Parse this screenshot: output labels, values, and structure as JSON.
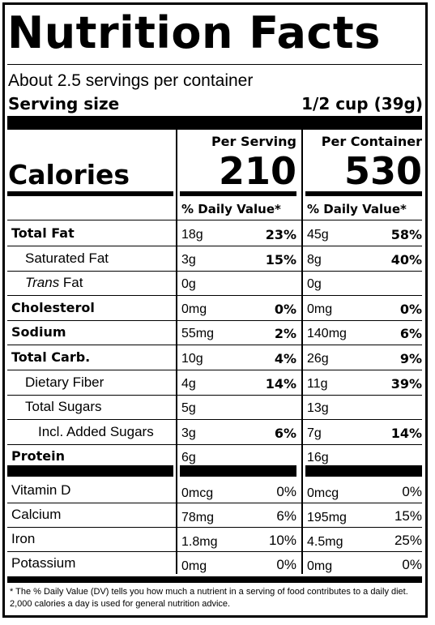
{
  "title": "Nutrition Facts",
  "servings_per_container": "About 2.5 servings per container",
  "serving_size_label": "Serving size",
  "serving_size_value": "1/2 cup (39g)",
  "columns": {
    "per_serving": "Per Serving",
    "per_container": "Per Container"
  },
  "calories": {
    "label": "Calories",
    "per_serving": "210",
    "per_container": "530"
  },
  "daily_value_header": "% Daily Value*",
  "nutrients": [
    {
      "name": "Total Fat",
      "bold": true,
      "indent": 0,
      "serving_amount": "18g",
      "serving_dv": "23%",
      "container_amount": "45g",
      "container_dv": "58%"
    },
    {
      "name": "Saturated Fat",
      "bold": false,
      "indent": 1,
      "serving_amount": "3g",
      "serving_dv": "15%",
      "container_amount": "8g",
      "container_dv": "40%"
    },
    {
      "name_italic": "Trans",
      "name": " Fat",
      "bold": false,
      "indent": 1,
      "serving_amount": "0g",
      "serving_dv": "",
      "container_amount": "0g",
      "container_dv": ""
    },
    {
      "name": "Cholesterol",
      "bold": true,
      "indent": 0,
      "serving_amount": "0mg",
      "serving_dv": "0%",
      "container_amount": "0mg",
      "container_dv": "0%"
    },
    {
      "name": "Sodium",
      "bold": true,
      "indent": 0,
      "serving_amount": "55mg",
      "serving_dv": "2%",
      "container_amount": "140mg",
      "container_dv": "6%"
    },
    {
      "name": "Total Carb.",
      "bold": true,
      "indent": 0,
      "serving_amount": "10g",
      "serving_dv": "4%",
      "container_amount": "26g",
      "container_dv": "9%"
    },
    {
      "name": "Dietary Fiber",
      "bold": false,
      "indent": 1,
      "serving_amount": "4g",
      "serving_dv": "14%",
      "container_amount": "11g",
      "container_dv": "39%"
    },
    {
      "name": "Total Sugars",
      "bold": false,
      "indent": 1,
      "serving_amount": "5g",
      "serving_dv": "",
      "container_amount": "13g",
      "container_dv": ""
    },
    {
      "name": "Incl. Added Sugars",
      "bold": false,
      "indent": 2,
      "serving_amount": "3g",
      "serving_dv": "6%",
      "container_amount": "7g",
      "container_dv": "14%"
    },
    {
      "name": "Protein",
      "bold": true,
      "indent": 0,
      "serving_amount": "6g",
      "serving_dv": "",
      "container_amount": "16g",
      "container_dv": ""
    }
  ],
  "vitamins": [
    {
      "name": "Vitamin D",
      "serving_amount": "0mcg",
      "serving_dv": "0%",
      "container_amount": "0mcg",
      "container_dv": "0%"
    },
    {
      "name": "Calcium",
      "serving_amount": "78mg",
      "serving_dv": "6%",
      "container_amount": "195mg",
      "container_dv": "15%"
    },
    {
      "name": "Iron",
      "serving_amount": "1.8mg",
      "serving_dv": "10%",
      "container_amount": "4.5mg",
      "container_dv": "25%"
    },
    {
      "name": "Potassium",
      "serving_amount": "0mg",
      "serving_dv": "0%",
      "container_amount": "0mg",
      "container_dv": "0%"
    }
  ],
  "footnote": "* The % Daily Value (DV) tells you how much a nutrient in a serving of food contributes to a daily diet. 2,000 calories a day is used for general nutrition advice."
}
